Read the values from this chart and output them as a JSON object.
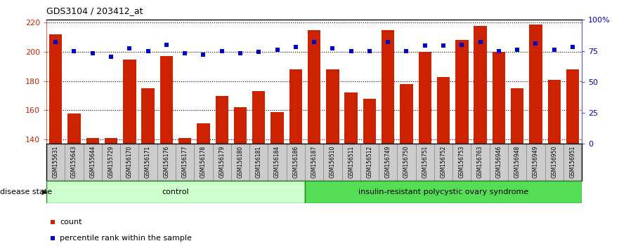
{
  "title": "GDS3104 / 203412_at",
  "samples": [
    "GSM155631",
    "GSM155643",
    "GSM155644",
    "GSM155729",
    "GSM156170",
    "GSM156171",
    "GSM156176",
    "GSM156177",
    "GSM156178",
    "GSM156179",
    "GSM156180",
    "GSM156181",
    "GSM156184",
    "GSM156186",
    "GSM156187",
    "GSM156510",
    "GSM156511",
    "GSM156512",
    "GSM156749",
    "GSM156750",
    "GSM156751",
    "GSM156752",
    "GSM156753",
    "GSM156763",
    "GSM156946",
    "GSM156948",
    "GSM156949",
    "GSM156950",
    "GSM156951"
  ],
  "counts": [
    212,
    158,
    141,
    141,
    195,
    175,
    197,
    141,
    151,
    170,
    162,
    173,
    159,
    188,
    215,
    188,
    172,
    168,
    215,
    178,
    200,
    183,
    208,
    218,
    200,
    175,
    219,
    181,
    188
  ],
  "percentiles": [
    82,
    75,
    73,
    70,
    77,
    75,
    80,
    73,
    72,
    75,
    73,
    74,
    76,
    78,
    82,
    77,
    75,
    75,
    82,
    75,
    79,
    79,
    80,
    82,
    75,
    76,
    81,
    76,
    78
  ],
  "control_count": 14,
  "disease_count": 15,
  "ylim_left": [
    137,
    222
  ],
  "ylim_right": [
    0,
    100
  ],
  "yticks_left": [
    140,
    160,
    180,
    200,
    220
  ],
  "yticks_right": [
    0,
    25,
    50,
    75,
    100
  ],
  "bar_color": "#cc2200",
  "dot_color": "#0000cc",
  "control_label": "control",
  "disease_label": "insulin-resistant polycystic ovary syndrome",
  "control_bg": "#ccffcc",
  "disease_bg": "#55dd55",
  "legend_count_label": "count",
  "legend_pct_label": "percentile rank within the sample",
  "tick_bg": "#cccccc",
  "tick_border": "#888888"
}
